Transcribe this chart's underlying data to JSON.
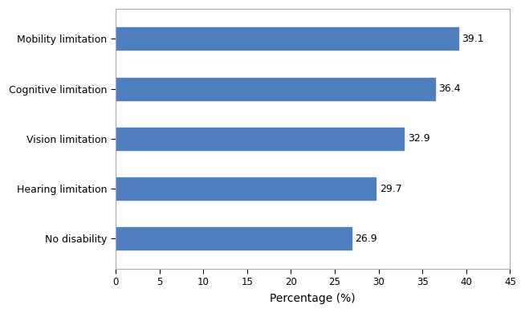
{
  "categories": [
    "Mobility limitation",
    "Cognitive limitation",
    "Vision limitation",
    "Hearing limitation",
    "No disability"
  ],
  "values": [
    39.1,
    36.4,
    32.9,
    29.7,
    26.9
  ],
  "bar_color": "#4F7FBF",
  "xlabel": "Percentage (%)",
  "xlim": [
    0,
    45
  ],
  "xticks": [
    0,
    5,
    10,
    15,
    20,
    25,
    30,
    35,
    40,
    45
  ],
  "label_fontsize": 9,
  "tick_fontsize": 8.5,
  "xlabel_fontsize": 10,
  "background_color": "#ffffff",
  "bar_height": 0.45,
  "figure_border_color": "#aaaaaa"
}
